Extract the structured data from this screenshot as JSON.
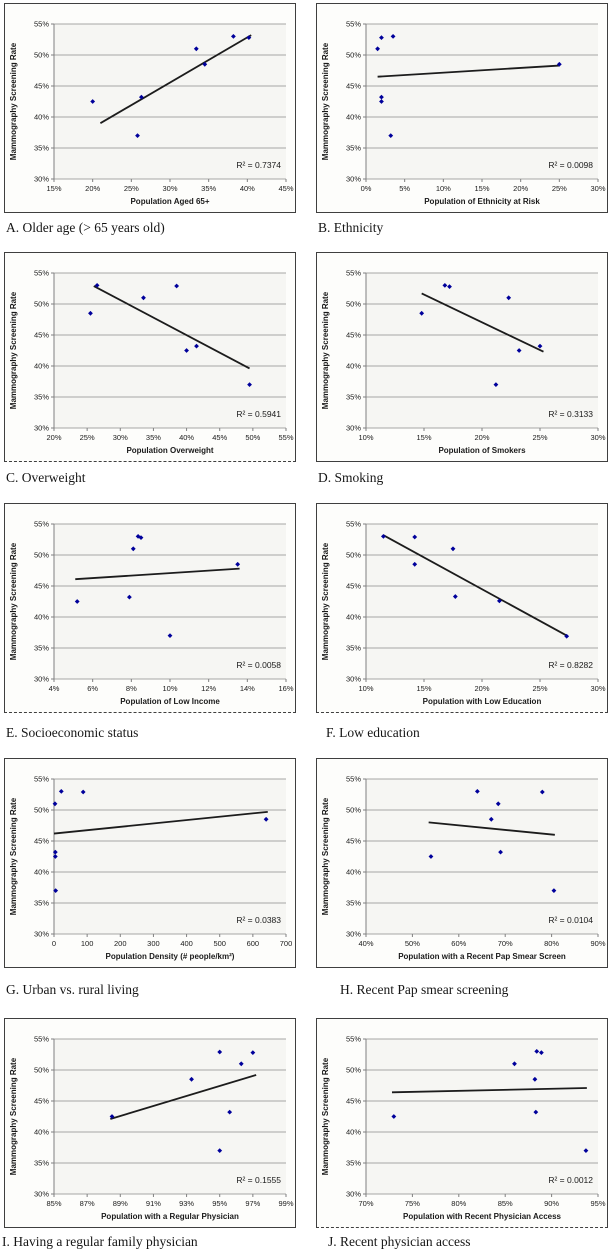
{
  "colors": {
    "point": "#00009b",
    "trendline": "#1c1c1c",
    "gridline": "#a6a6a6",
    "axis_line": "#808080",
    "panel_border": "#3f3f3f",
    "plot_bg": "#f6f6f3",
    "panel_bg": "#fdfdfb",
    "text": "#1a1a1a"
  },
  "chart_data": [
    {
      "id": "A",
      "type": "scatter",
      "caption": "A. Older age (> 65 years old)",
      "xlabel": "Population Aged 65+",
      "ylabel": "Mammography Screening Rate",
      "xlim": [
        15,
        45
      ],
      "xticks": [
        15,
        20,
        25,
        30,
        35,
        40,
        45
      ],
      "xtick_suffix": "%",
      "ylim": [
        30,
        55
      ],
      "yticks": [
        30,
        35,
        40,
        45,
        50,
        55
      ],
      "ytick_suffix": "%",
      "grid": true,
      "legend": "none",
      "points": [
        [
          20,
          42.5
        ],
        [
          25.8,
          37
        ],
        [
          26.3,
          43.2
        ],
        [
          33.4,
          51
        ],
        [
          34.5,
          48.5
        ],
        [
          38.2,
          53
        ],
        [
          40.2,
          52.8
        ]
      ],
      "trendline": [
        [
          21,
          39
        ],
        [
          40.5,
          53.2
        ]
      ],
      "r2_label": "R² = 0.7374"
    },
    {
      "id": "B",
      "type": "scatter",
      "caption": "B. Ethnicity",
      "xlabel": "Population of Ethnicity at Risk",
      "ylabel": "Mammography Screening Rate",
      "xlim": [
        0,
        30
      ],
      "xticks": [
        0,
        5,
        10,
        15,
        20,
        25,
        30
      ],
      "xtick_suffix": "%",
      "ylim": [
        30,
        55
      ],
      "yticks": [
        30,
        35,
        40,
        45,
        50,
        55
      ],
      "ytick_suffix": "%",
      "grid": true,
      "legend": "none",
      "points": [
        [
          1.5,
          51
        ],
        [
          2,
          52.8
        ],
        [
          3.5,
          53
        ],
        [
          2,
          43.2
        ],
        [
          2,
          42.5
        ],
        [
          3.2,
          37
        ],
        [
          25,
          48.5
        ]
      ],
      "trendline": [
        [
          1.5,
          46.5
        ],
        [
          25,
          48.3
        ]
      ],
      "r2_label": "R² = 0.0098"
    },
    {
      "id": "C",
      "type": "scatter",
      "caption": "C. Overweight",
      "xlabel": "Population Overweight",
      "ylabel": "Mammography Screening Rate",
      "xlim": [
        20,
        55
      ],
      "xticks": [
        20,
        25,
        30,
        35,
        40,
        45,
        50,
        55
      ],
      "xtick_suffix": "%",
      "ylim": [
        30,
        55
      ],
      "yticks": [
        30,
        35,
        40,
        45,
        50,
        55
      ],
      "ytick_suffix": "%",
      "grid": true,
      "legend": "none",
      "points": [
        [
          25.5,
          48.5
        ],
        [
          26.5,
          53
        ],
        [
          33.5,
          51
        ],
        [
          38.5,
          52.9
        ],
        [
          40,
          42.5
        ],
        [
          41.5,
          43.2
        ],
        [
          49.5,
          37
        ]
      ],
      "trendline": [
        [
          26,
          52.9
        ],
        [
          49.5,
          39.6
        ]
      ],
      "r2_label": "R² = 0.5941"
    },
    {
      "id": "D",
      "type": "scatter",
      "caption": "D. Smoking",
      "xlabel": "Population of Smokers",
      "ylabel": "Mammography Screening Rate",
      "xlim": [
        10,
        30
      ],
      "xticks": [
        10,
        15,
        20,
        25,
        30
      ],
      "xtick_suffix": "%",
      "ylim": [
        30,
        55
      ],
      "yticks": [
        30,
        35,
        40,
        45,
        50,
        55
      ],
      "ytick_suffix": "%",
      "grid": true,
      "legend": "none",
      "points": [
        [
          14.8,
          48.5
        ],
        [
          16.8,
          53
        ],
        [
          17.2,
          52.8
        ],
        [
          21.2,
          37
        ],
        [
          22.3,
          51
        ],
        [
          23.2,
          42.5
        ],
        [
          25,
          43.2
        ]
      ],
      "trendline": [
        [
          14.8,
          51.7
        ],
        [
          25.3,
          42.3
        ]
      ],
      "r2_label": "R² = 0.3133"
    },
    {
      "id": "E",
      "type": "scatter",
      "caption": "E. Socioeconomic status",
      "xlabel": "Population of Low Income",
      "ylabel": "Mammography Screening Rate",
      "xlim": [
        4,
        16
      ],
      "xticks": [
        4,
        6,
        8,
        10,
        12,
        14,
        16
      ],
      "xtick_suffix": "%",
      "ylim": [
        30,
        55
      ],
      "yticks": [
        30,
        35,
        40,
        45,
        50,
        55
      ],
      "ytick_suffix": "%",
      "grid": true,
      "legend": "none",
      "points": [
        [
          5.2,
          42.5
        ],
        [
          7.9,
          43.2
        ],
        [
          8.1,
          51
        ],
        [
          8.35,
          53
        ],
        [
          8.5,
          52.8
        ],
        [
          10,
          37
        ],
        [
          13.5,
          48.5
        ]
      ],
      "trendline": [
        [
          5.1,
          46.1
        ],
        [
          13.6,
          47.8
        ]
      ],
      "r2_label": "R² = 0.0058"
    },
    {
      "id": "F",
      "type": "scatter",
      "caption": "F. Low education",
      "xlabel": "Population with Low Education",
      "ylabel": "Mammography Screening Rate",
      "xlim": [
        10,
        30
      ],
      "xticks": [
        10,
        15,
        20,
        25,
        30
      ],
      "xtick_suffix": "%",
      "ylim": [
        30,
        55
      ],
      "yticks": [
        30,
        35,
        40,
        45,
        50,
        55
      ],
      "ytick_suffix": "%",
      "grid": true,
      "legend": "none",
      "points": [
        [
          11.5,
          53
        ],
        [
          14.2,
          52.9
        ],
        [
          14.2,
          48.5
        ],
        [
          17.5,
          51
        ],
        [
          17.7,
          43.3
        ],
        [
          21.5,
          42.6
        ],
        [
          27.3,
          36.9
        ]
      ],
      "trendline": [
        [
          11.5,
          53.2
        ],
        [
          27.3,
          37
        ]
      ],
      "r2_label": "R² = 0.8282"
    },
    {
      "id": "G",
      "type": "scatter",
      "caption": "G. Urban vs. rural living",
      "xlabel": "Population Density (# people/km²)",
      "ylabel": "Mammography Screening Rate",
      "xlim": [
        0,
        700
      ],
      "xticks": [
        0,
        100,
        200,
        300,
        400,
        500,
        600,
        700
      ],
      "xtick_suffix": "",
      "ylim": [
        30,
        55
      ],
      "yticks": [
        30,
        35,
        40,
        45,
        50,
        55
      ],
      "ytick_suffix": "%",
      "grid": true,
      "legend": "none",
      "points": [
        [
          3,
          51
        ],
        [
          22,
          53
        ],
        [
          88,
          52.9
        ],
        [
          4,
          43.2
        ],
        [
          4,
          42.5
        ],
        [
          5,
          37
        ],
        [
          640,
          48.5
        ]
      ],
      "trendline": [
        [
          0,
          46.2
        ],
        [
          645,
          49.7
        ]
      ],
      "r2_label": "R² = 0.0383"
    },
    {
      "id": "H",
      "type": "scatter",
      "caption": "H. Recent Pap smear screening",
      "xlabel": "Population with a Recent Pap Smear Screen",
      "ylabel": "Mammography Screening Rate",
      "xlim": [
        40,
        90
      ],
      "xticks": [
        40,
        50,
        60,
        70,
        80,
        90
      ],
      "xtick_suffix": "%",
      "ylim": [
        30,
        55
      ],
      "yticks": [
        30,
        35,
        40,
        45,
        50,
        55
      ],
      "ytick_suffix": "%",
      "grid": true,
      "legend": "none",
      "points": [
        [
          54,
          42.5
        ],
        [
          64,
          53
        ],
        [
          67,
          48.5
        ],
        [
          68.5,
          51
        ],
        [
          69,
          43.2
        ],
        [
          78,
          52.9
        ],
        [
          80.5,
          37
        ]
      ],
      "trendline": [
        [
          53.5,
          48
        ],
        [
          80.7,
          46
        ]
      ],
      "r2_label": "R² = 0.0104"
    },
    {
      "id": "I",
      "type": "scatter",
      "caption": "I. Having a regular family physician",
      "xlabel": "Population with a Regular Physician",
      "ylabel": "Mammography Screening Rate",
      "xlim": [
        85,
        99
      ],
      "xticks": [
        85,
        87,
        89,
        91,
        93,
        95,
        97,
        99
      ],
      "xtick_suffix": "%",
      "ylim": [
        30,
        55
      ],
      "yticks": [
        30,
        35,
        40,
        45,
        50,
        55
      ],
      "ytick_suffix": "%",
      "grid": true,
      "legend": "none",
      "points": [
        [
          88.5,
          42.5
        ],
        [
          93.3,
          48.5
        ],
        [
          95,
          52.9
        ],
        [
          95,
          37
        ],
        [
          95.6,
          43.2
        ],
        [
          96.3,
          51
        ],
        [
          97,
          52.8
        ]
      ],
      "trendline": [
        [
          88.4,
          42.1
        ],
        [
          97.2,
          49.2
        ]
      ],
      "r2_label": "R² = 0.1555"
    },
    {
      "id": "J",
      "type": "scatter",
      "caption": "J. Recent physician access",
      "xlabel": "Population with Recent Physician Access",
      "ylabel": "Mammography Screening Rate",
      "xlim": [
        70,
        95
      ],
      "xticks": [
        70,
        75,
        80,
        85,
        90,
        95
      ],
      "xtick_suffix": "%",
      "ylim": [
        30,
        55
      ],
      "yticks": [
        30,
        35,
        40,
        45,
        50,
        55
      ],
      "ytick_suffix": "%",
      "grid": true,
      "legend": "none",
      "points": [
        [
          73,
          42.5
        ],
        [
          86,
          51
        ],
        [
          88.2,
          48.5
        ],
        [
          88.4,
          53
        ],
        [
          88.9,
          52.8
        ],
        [
          88.3,
          43.2
        ],
        [
          93.7,
          37
        ]
      ],
      "trendline": [
        [
          72.8,
          46.4
        ],
        [
          93.8,
          47.1
        ]
      ],
      "r2_label": "R² = 0.0012"
    }
  ]
}
